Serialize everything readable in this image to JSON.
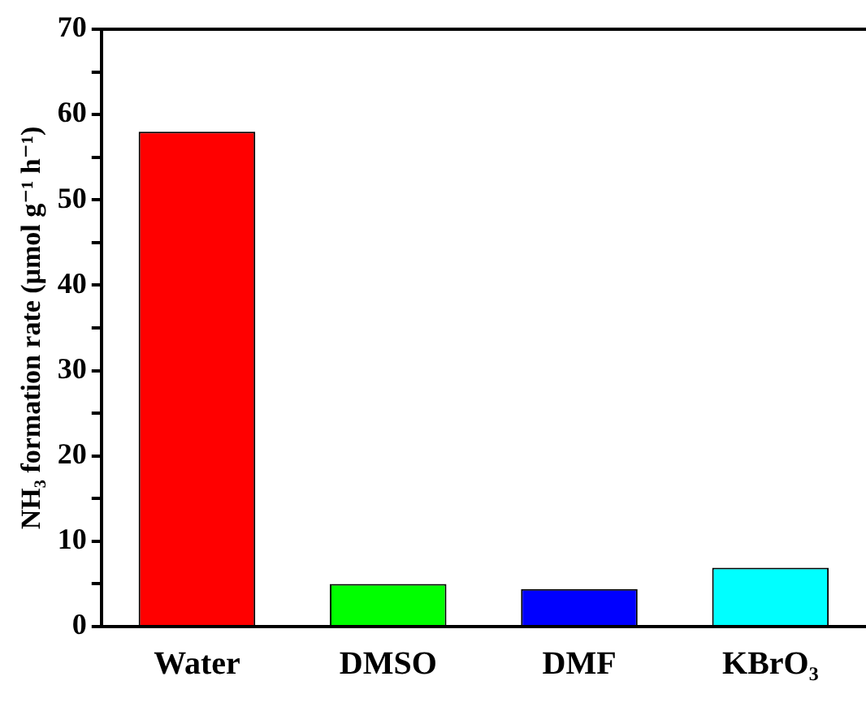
{
  "chart_data": {
    "type": "bar",
    "ylabel": "NH₃ formation rate (μmol g⁻¹ h⁻¹)",
    "categories": [
      "Water",
      "DMSO",
      "DMF",
      "KBrO₃"
    ],
    "values": [
      58,
      5.0,
      4.4,
      6.9
    ],
    "colors": [
      "#ff0000",
      "#00ff00",
      "#0000ff",
      "#00ffff"
    ],
    "ylim": [
      0,
      70
    ],
    "yticks": [
      0,
      {
        "value": 5,
        "label": null
      },
      10,
      {
        "value": 15,
        "label": null
      },
      20,
      {
        "value": 25,
        "label": null
      },
      30,
      {
        "value": 35,
        "label": null
      },
      40,
      {
        "value": 45,
        "label": null
      },
      50,
      {
        "value": 55,
        "label": null
      },
      60,
      {
        "value": 65,
        "label": null
      },
      70
    ],
    "grid": false,
    "legend": false
  }
}
